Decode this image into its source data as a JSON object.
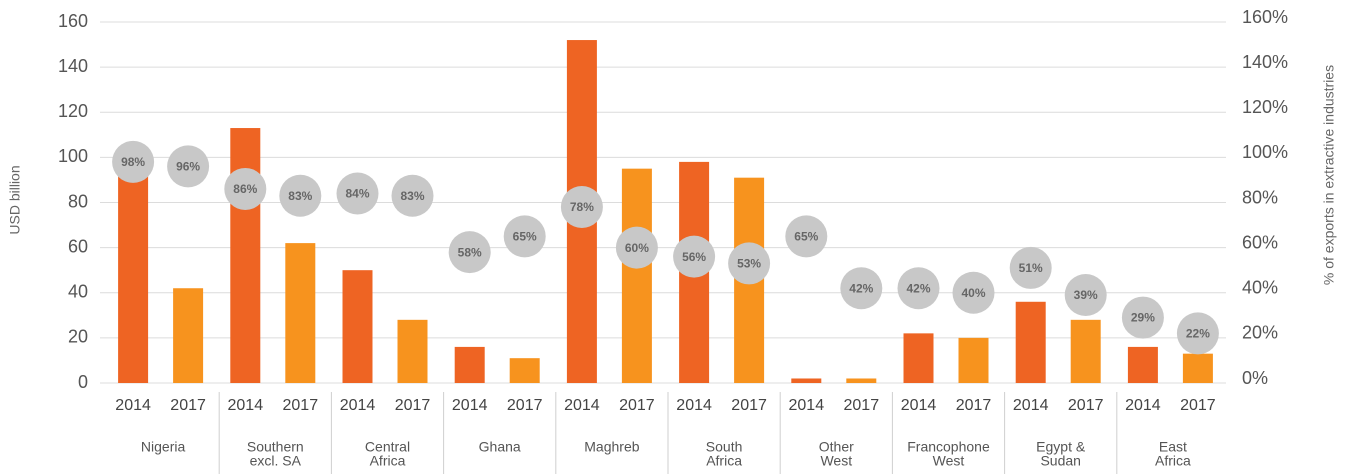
{
  "chart_data": {
    "type": "bar",
    "categories": [
      [
        "Nigeria"
      ],
      [
        "Southern",
        "excl. SA"
      ],
      [
        "Central",
        "Africa"
      ],
      [
        "Ghana"
      ],
      [
        "Maghreb"
      ],
      [
        "South",
        "Africa"
      ],
      [
        "Other",
        "West"
      ],
      [
        "Francophone",
        "West"
      ],
      [
        "Egypt &",
        "Sudan"
      ],
      [
        "East",
        "Africa"
      ]
    ],
    "series": [
      {
        "name": "2014",
        "color": "#ee6423",
        "values": [
          95,
          113,
          50,
          16,
          152,
          98,
          2,
          22,
          36,
          16
        ]
      },
      {
        "name": "2017",
        "color": "#f7931e",
        "values": [
          42,
          62,
          28,
          11,
          95,
          91,
          2,
          20,
          28,
          13
        ]
      }
    ],
    "pct": {
      "axis": "y2",
      "color": "#c8c8c8",
      "values": [
        98,
        96,
        86,
        83,
        84,
        83,
        58,
        65,
        78,
        60,
        56,
        53,
        65,
        42,
        42,
        40,
        51,
        39,
        29,
        22
      ],
      "value_labels": [
        "98%",
        "96%",
        "86%",
        "83%",
        "84%",
        "83%",
        "58%",
        "65%",
        "78%",
        "60%",
        "56%",
        "53%",
        "65%",
        "42%",
        "42%",
        "40%",
        "51%",
        "39%",
        "29%",
        "22%"
      ]
    },
    "ylabel": "USD billion",
    "y2label": "% of exports in extractive industries",
    "ylim": [
      0,
      160
    ],
    "yticks": [
      0,
      20,
      40,
      60,
      80,
      100,
      120,
      140,
      160
    ],
    "y2lim": [
      0,
      160
    ],
    "y2ticks": [
      {
        "value": 0,
        "label": "0%"
      },
      {
        "value": 20,
        "label": "20%"
      },
      {
        "value": 40,
        "label": "40%"
      },
      {
        "value": 60,
        "label": "60%"
      },
      {
        "value": 80,
        "label": "80%"
      },
      {
        "value": 100,
        "label": "100%"
      },
      {
        "value": 120,
        "label": "120%"
      },
      {
        "value": 140,
        "label": "140%"
      },
      {
        "value": 160,
        "label": "160%"
      }
    ],
    "grid": true
  }
}
